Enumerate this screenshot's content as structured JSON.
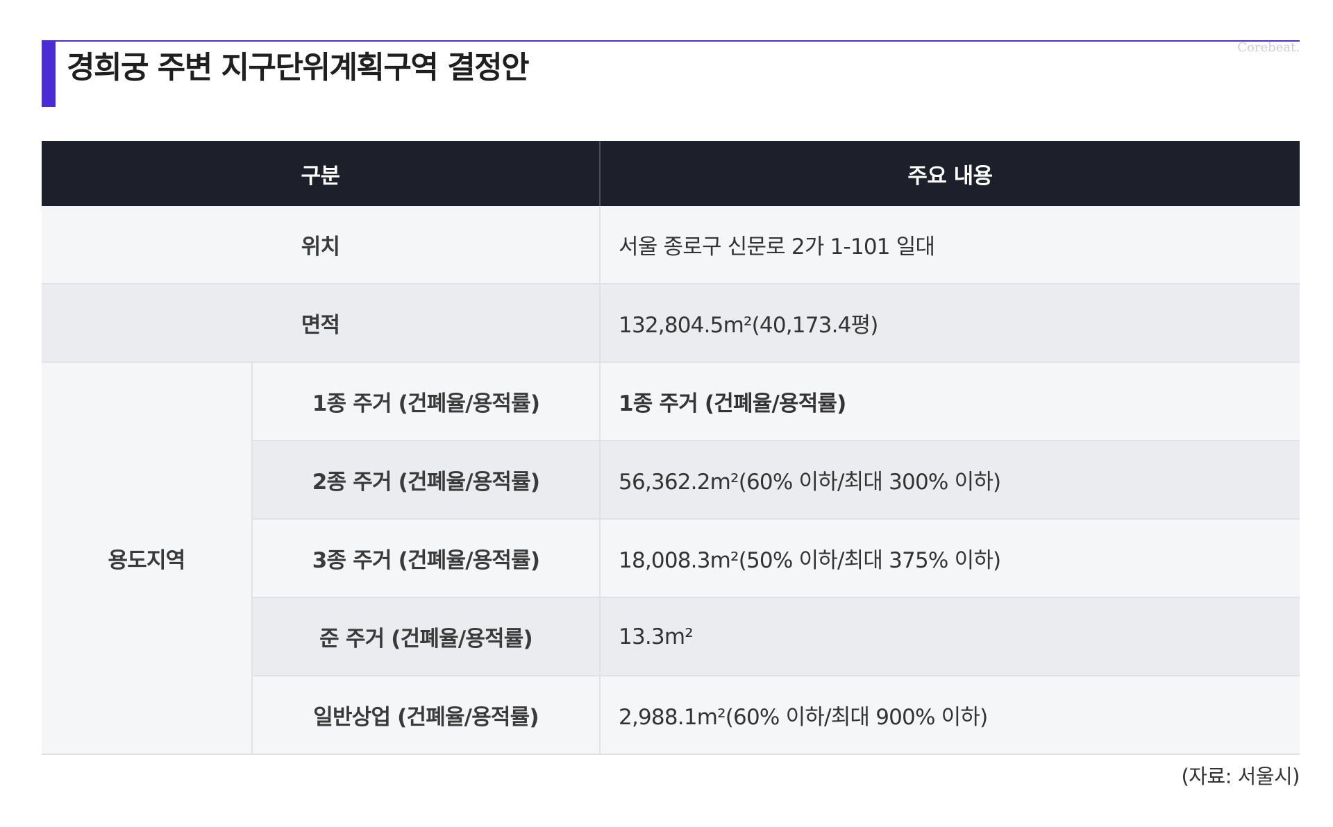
{
  "title": "경희궁 주변 지구단위계획구역 결정안",
  "watermark": "Corebeat.",
  "colors": {
    "accent": "#4a2bd4",
    "header_bg": "#1d1f2b",
    "row_light": "#f5f6f8",
    "row_dark": "#ebecef"
  },
  "table": {
    "headers": [
      "구분",
      "주요 내용"
    ],
    "rows": {
      "location": {
        "label": "위치",
        "value": "서울 종로구 신문로 2가 1-101 일대"
      },
      "area": {
        "label": "면적",
        "value": "132,804.5m²(40,173.4평)"
      },
      "zoning": {
        "label": "용도지역",
        "items": [
          {
            "label": "1종 주거 (건폐율/용적률)",
            "value": "1종 주거 (건폐율/용적률)"
          },
          {
            "label": "2종 주거 (건폐율/용적률)",
            "value": "56,362.2m²(60% 이하/최대 300% 이하)"
          },
          {
            "label": "3종 주거 (건폐율/용적률)",
            "value": "18,008.3m²(50% 이하/최대 375% 이하)"
          },
          {
            "label": "준 주거 (건폐율/용적률)",
            "value": "13.3m²"
          },
          {
            "label": "일반상업 (건폐율/용적률)",
            "value": "2,988.1m²(60% 이하/최대 900% 이하)"
          }
        ]
      }
    }
  },
  "source": "(자료: 서울시)"
}
